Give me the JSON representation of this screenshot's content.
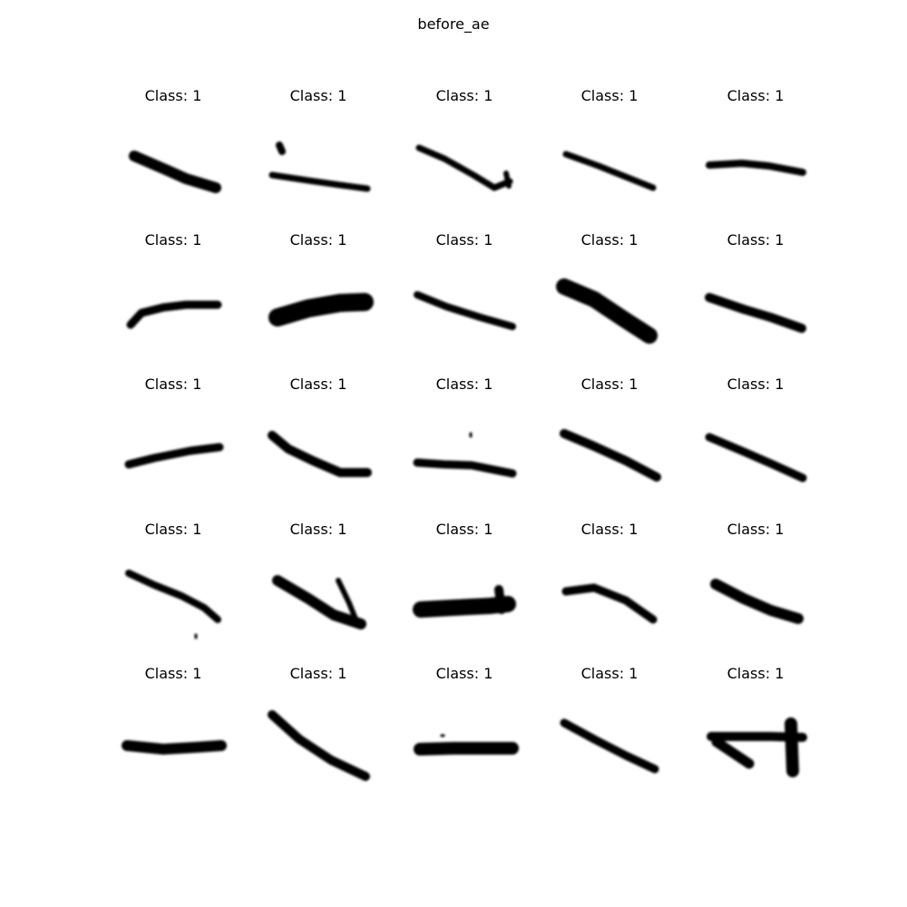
{
  "figure": {
    "title": "before_ae"
  },
  "panels": [
    {
      "label": "Class: 1",
      "strokes": [
        {
          "pts": [
            [
              148,
              172
            ],
            [
              185,
              188
            ],
            [
              205,
              197
            ],
            [
              238,
              207
            ]
          ],
          "w": 12
        }
      ]
    },
    {
      "label": "Class: 1",
      "strokes": [
        {
          "pts": [
            [
              300,
              193
            ],
            [
              340,
              199
            ],
            [
              375,
              204
            ],
            [
              405,
              208
            ]
          ],
          "w": 7
        },
        {
          "pts": [
            [
              308,
              160
            ],
            [
              311,
              167
            ]
          ],
          "w": 8
        }
      ]
    },
    {
      "label": "Class: 1",
      "strokes": [
        {
          "pts": [
            [
              462,
              163
            ],
            [
              490,
              175
            ],
            [
              522,
              193
            ],
            [
              545,
              207
            ],
            [
              562,
              200
            ]
          ],
          "w": 7
        },
        {
          "pts": [
            [
              558,
              191
            ],
            [
              561,
              205
            ]
          ],
          "w": 6
        }
      ]
    },
    {
      "label": "Class: 1",
      "strokes": [
        {
          "pts": [
            [
              624,
              170
            ],
            [
              660,
              183
            ],
            [
              690,
              195
            ],
            [
              720,
              207
            ]
          ],
          "w": 7
        }
      ]
    },
    {
      "label": "Class: 1",
      "strokes": [
        {
          "pts": [
            [
              782,
              182
            ],
            [
              818,
              180
            ],
            [
              848,
              183
            ],
            [
              885,
              190
            ]
          ],
          "w": 8
        }
      ]
    },
    {
      "label": "Class: 1",
      "strokes": [
        {
          "pts": [
            [
              144,
              358
            ],
            [
              156,
              345
            ],
            [
              180,
              339
            ],
            [
              205,
              336
            ],
            [
              240,
              336
            ]
          ],
          "w": 9
        }
      ]
    },
    {
      "label": "Class: 1",
      "strokes": [
        {
          "pts": [
            [
              306,
              350
            ],
            [
              340,
              340
            ],
            [
              375,
              334
            ],
            [
              402,
              333
            ]
          ],
          "w": 20
        }
      ]
    },
    {
      "label": "Class: 1",
      "strokes": [
        {
          "pts": [
            [
              460,
              325
            ],
            [
              492,
              338
            ],
            [
              530,
              350
            ],
            [
              565,
              360
            ]
          ],
          "w": 8
        }
      ]
    },
    {
      "label": "Class: 1",
      "strokes": [
        {
          "pts": [
            [
              622,
              316
            ],
            [
              655,
              330
            ],
            [
              688,
              352
            ],
            [
              716,
              370
            ]
          ],
          "w": 18
        }
      ]
    },
    {
      "label": "Class: 1",
      "strokes": [
        {
          "pts": [
            [
              782,
              328
            ],
            [
              820,
              341
            ],
            [
              850,
              350
            ],
            [
              884,
              362
            ]
          ],
          "w": 10
        }
      ]
    },
    {
      "label": "Class: 1",
      "strokes": [
        {
          "pts": [
            [
              142,
              512
            ],
            [
              170,
              505
            ],
            [
              210,
              497
            ],
            [
              242,
              493
            ]
          ],
          "w": 9
        }
      ]
    },
    {
      "label": "Class: 1",
      "strokes": [
        {
          "pts": [
            [
              300,
              480
            ],
            [
              318,
              495
            ],
            [
              345,
              508
            ],
            [
              375,
              521
            ],
            [
              405,
              521
            ]
          ],
          "w": 10
        }
      ]
    },
    {
      "label": "Class: 1",
      "strokes": [
        {
          "pts": [
            [
              460,
              510
            ],
            [
              490,
              512
            ],
            [
              520,
              513
            ],
            [
              565,
              522
            ]
          ],
          "w": 9
        },
        {
          "pts": [
            [
              519,
              478
            ],
            [
              519,
              481
            ]
          ],
          "w": 3
        }
      ]
    },
    {
      "label": "Class: 1",
      "strokes": [
        {
          "pts": [
            [
              622,
              478
            ],
            [
              655,
              492
            ],
            [
              690,
              508
            ],
            [
              724,
              526
            ]
          ],
          "w": 10
        }
      ]
    },
    {
      "label": "Class: 1",
      "strokes": [
        {
          "pts": [
            [
              782,
              482
            ],
            [
              820,
              498
            ],
            [
              852,
              512
            ],
            [
              885,
              527
            ]
          ],
          "w": 9
        }
      ]
    },
    {
      "label": "Class: 1",
      "strokes": [
        {
          "pts": [
            [
              142,
              632
            ],
            [
              170,
              645
            ],
            [
              200,
              657
            ],
            [
              225,
              670
            ],
            [
              240,
              683
            ]
          ],
          "w": 8
        },
        {
          "pts": [
            [
              216,
              700
            ],
            [
              216,
              703
            ]
          ],
          "w": 3
        }
      ]
    },
    {
      "label": "Class: 1",
      "strokes": [
        {
          "pts": [
            [
              306,
              640
            ],
            [
              340,
              660
            ],
            [
              368,
              678
            ],
            [
              398,
              688
            ]
          ],
          "w": 12
        },
        {
          "pts": [
            [
              373,
              640
            ],
            [
              385,
              665
            ],
            [
              393,
              685
            ]
          ],
          "w": 6
        }
      ]
    },
    {
      "label": "Class: 1",
      "strokes": [
        {
          "pts": [
            [
              464,
              672
            ],
            [
              500,
              670
            ],
            [
              540,
              668
            ],
            [
              560,
              666
            ]
          ],
          "w": 18
        },
        {
          "pts": [
            [
              550,
              650
            ],
            [
              553,
              672
            ]
          ],
          "w": 10
        }
      ]
    },
    {
      "label": "Class: 1",
      "strokes": [
        {
          "pts": [
            [
              624,
              652
            ],
            [
              655,
              648
            ],
            [
              690,
              662
            ],
            [
              720,
              683
            ]
          ],
          "w": 9
        }
      ]
    },
    {
      "label": "Class: 1",
      "strokes": [
        {
          "pts": [
            [
              789,
              644
            ],
            [
              820,
              660
            ],
            [
              850,
              673
            ],
            [
              880,
              682
            ]
          ],
          "w": 12
        }
      ]
    },
    {
      "label": "Class: 1",
      "strokes": [
        {
          "pts": [
            [
              140,
              822
            ],
            [
              180,
              826
            ],
            [
              215,
              824
            ],
            [
              244,
              822
            ]
          ],
          "w": 12
        }
      ]
    },
    {
      "label": "Class: 1",
      "strokes": [
        {
          "pts": [
            [
              300,
              788
            ],
            [
              330,
              815
            ],
            [
              365,
              838
            ],
            [
              403,
              856
            ]
          ],
          "w": 10
        }
      ]
    },
    {
      "label": "Class: 1",
      "strokes": [
        {
          "pts": [
            [
              463,
              826
            ],
            [
              500,
              825
            ],
            [
              540,
              825
            ],
            [
              565,
              825
            ]
          ],
          "w": 14
        },
        {
          "pts": [
            [
              487,
              811
            ],
            [
              489,
              811
            ]
          ],
          "w": 3
        }
      ]
    },
    {
      "label": "Class: 1",
      "strokes": [
        {
          "pts": [
            [
              622,
              797
            ],
            [
              655,
              815
            ],
            [
              690,
              833
            ],
            [
              722,
              848
            ]
          ],
          "w": 9
        }
      ]
    },
    {
      "label": "Class: 1",
      "strokes": [
        {
          "pts": [
            [
              784,
              812
            ],
            [
              820,
              812
            ],
            [
              850,
              812
            ],
            [
              885,
              813
            ]
          ],
          "w": 10
        },
        {
          "pts": [
            [
              872,
              798
            ],
            [
              874,
              850
            ]
          ],
          "w": 14
        },
        {
          "pts": [
            [
              790,
              818
            ],
            [
              808,
              830
            ],
            [
              826,
              842
            ]
          ],
          "w": 11
        }
      ]
    }
  ]
}
